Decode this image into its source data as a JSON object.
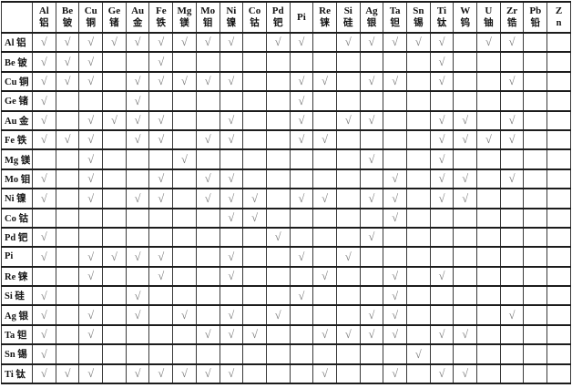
{
  "check_glyph": "√",
  "colors": {
    "background": "#ffffff",
    "text": "#141414",
    "horizontal_line": "#1c1c1c",
    "vertical_line": "#3a3a3a",
    "check": "#7b7b7b"
  },
  "table": {
    "corner_label": "",
    "columns": [
      {
        "line1": "Al",
        "line2": "铝"
      },
      {
        "line1": "Be",
        "line2": "铍"
      },
      {
        "line1": "Cu",
        "line2": "铜"
      },
      {
        "line1": "Ge",
        "line2": "锗"
      },
      {
        "line1": "Au",
        "line2": "金"
      },
      {
        "line1": "Fe",
        "line2": "铁"
      },
      {
        "line1": "Mg",
        "line2": "镁"
      },
      {
        "line1": "Mo",
        "line2": "钼"
      },
      {
        "line1": "Ni",
        "line2": "镍"
      },
      {
        "line1": "Co",
        "line2": "钴"
      },
      {
        "line1": "Pd",
        "line2": "钯"
      },
      {
        "line1": "Pi",
        "line2": ""
      },
      {
        "line1": "Re",
        "line2": "铼"
      },
      {
        "line1": "Si",
        "line2": "硅"
      },
      {
        "line1": "Ag",
        "line2": "银"
      },
      {
        "line1": "Ta",
        "line2": "钽"
      },
      {
        "line1": "Sn",
        "line2": "锡"
      },
      {
        "line1": "Ti",
        "line2": "钛"
      },
      {
        "line1": "W",
        "line2": "钨"
      },
      {
        "line1": "U",
        "line2": "铀"
      },
      {
        "line1": "Zr",
        "line2": "锆"
      },
      {
        "line1": "Pb",
        "line2": "铅"
      },
      {
        "line1": "Z",
        "line2": "n"
      }
    ],
    "rows": [
      {
        "label": "Al 铝",
        "cells": [
          1,
          1,
          1,
          1,
          1,
          1,
          1,
          1,
          1,
          0,
          1,
          1,
          0,
          1,
          1,
          1,
          1,
          1,
          0,
          1,
          1,
          0,
          0
        ]
      },
      {
        "label": "Be 铍",
        "cells": [
          1,
          1,
          1,
          0,
          0,
          1,
          0,
          0,
          0,
          0,
          0,
          0,
          0,
          0,
          0,
          0,
          0,
          1,
          0,
          0,
          0,
          0,
          0
        ]
      },
      {
        "label": "Cu 铜",
        "cells": [
          1,
          1,
          1,
          0,
          1,
          1,
          1,
          1,
          1,
          0,
          0,
          1,
          1,
          0,
          1,
          1,
          0,
          1,
          0,
          0,
          1,
          0,
          0
        ]
      },
      {
        "label": "Ge 锗",
        "cells": [
          1,
          0,
          0,
          0,
          1,
          0,
          0,
          0,
          0,
          0,
          0,
          1,
          0,
          0,
          0,
          0,
          0,
          0,
          0,
          0,
          0,
          0,
          0
        ]
      },
      {
        "label": "Au 金",
        "cells": [
          1,
          0,
          1,
          1,
          1,
          1,
          0,
          0,
          1,
          0,
          0,
          1,
          0,
          1,
          1,
          0,
          0,
          1,
          1,
          0,
          1,
          0,
          0
        ]
      },
      {
        "label": "Fe 铁",
        "cells": [
          1,
          1,
          1,
          0,
          1,
          1,
          0,
          1,
          1,
          0,
          0,
          1,
          1,
          0,
          0,
          0,
          0,
          1,
          1,
          1,
          1,
          0,
          0
        ]
      },
      {
        "label": "Mg 镁",
        "cells": [
          0,
          0,
          1,
          0,
          0,
          0,
          1,
          0,
          0,
          0,
          0,
          0,
          0,
          0,
          1,
          0,
          0,
          1,
          0,
          0,
          0,
          0,
          0
        ]
      },
      {
        "label": "Mo 钼",
        "cells": [
          1,
          0,
          1,
          0,
          0,
          1,
          0,
          1,
          1,
          0,
          0,
          0,
          0,
          0,
          0,
          1,
          0,
          1,
          1,
          0,
          1,
          0,
          0
        ]
      },
      {
        "label": "Ni 镍",
        "cells": [
          1,
          0,
          1,
          0,
          1,
          1,
          0,
          1,
          1,
          1,
          0,
          1,
          1,
          0,
          1,
          1,
          0,
          1,
          1,
          0,
          0,
          0,
          0
        ]
      },
      {
        "label": "Co 钴",
        "cells": [
          0,
          0,
          0,
          0,
          0,
          0,
          0,
          0,
          1,
          1,
          0,
          0,
          0,
          0,
          0,
          1,
          0,
          0,
          0,
          0,
          0,
          0,
          0
        ]
      },
      {
        "label": "Pd 钯",
        "cells": [
          1,
          0,
          0,
          0,
          0,
          0,
          0,
          0,
          0,
          0,
          1,
          0,
          0,
          0,
          1,
          0,
          0,
          0,
          0,
          0,
          0,
          0,
          0
        ]
      },
      {
        "label": "Pi",
        "cells": [
          1,
          0,
          1,
          1,
          1,
          1,
          0,
          0,
          1,
          0,
          0,
          1,
          0,
          1,
          0,
          0,
          0,
          0,
          0,
          0,
          0,
          0,
          0
        ]
      },
      {
        "label": "Re 铼",
        "cells": [
          0,
          0,
          1,
          0,
          0,
          1,
          0,
          0,
          1,
          0,
          0,
          0,
          1,
          0,
          0,
          1,
          0,
          1,
          0,
          0,
          0,
          0,
          0
        ]
      },
      {
        "label": "Si 硅",
        "cells": [
          1,
          0,
          0,
          0,
          1,
          0,
          0,
          0,
          0,
          0,
          0,
          1,
          0,
          0,
          0,
          1,
          0,
          0,
          0,
          0,
          0,
          0,
          0
        ]
      },
      {
        "label": "Ag 银",
        "cells": [
          1,
          0,
          1,
          0,
          1,
          0,
          1,
          0,
          1,
          0,
          1,
          0,
          0,
          0,
          1,
          1,
          0,
          0,
          0,
          0,
          1,
          0,
          0
        ]
      },
      {
        "label": "Ta 钽",
        "cells": [
          1,
          0,
          1,
          0,
          0,
          0,
          0,
          1,
          1,
          1,
          0,
          0,
          1,
          1,
          1,
          1,
          0,
          1,
          1,
          0,
          0,
          0,
          0
        ]
      },
      {
        "label": "Sn 锡",
        "cells": [
          1,
          0,
          0,
          0,
          0,
          0,
          0,
          0,
          0,
          0,
          0,
          0,
          0,
          0,
          0,
          0,
          1,
          0,
          0,
          0,
          0,
          0,
          0
        ]
      },
      {
        "label": "Ti 钛",
        "cells": [
          1,
          1,
          1,
          0,
          1,
          1,
          1,
          1,
          1,
          0,
          0,
          0,
          1,
          0,
          0,
          1,
          0,
          1,
          1,
          0,
          0,
          0,
          0
        ]
      }
    ]
  }
}
